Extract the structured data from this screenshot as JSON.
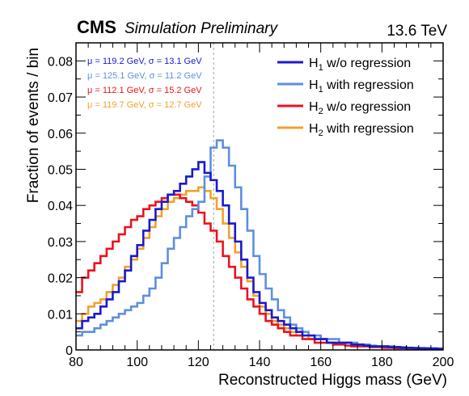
{
  "header": {
    "experiment": "CMS",
    "status": "Simulation Preliminary",
    "energy": "13.6 TeV"
  },
  "stats": [
    {
      "text": "μ = 119.2 GeV,   σ = 13.1 GeV",
      "color": "#1a1acc"
    },
    {
      "text": "μ = 125.1 GeV,   σ = 11.2 GeV",
      "color": "#5e8fe0"
    },
    {
      "text": "μ = 112.1 GeV,   σ = 15.2 GeV",
      "color": "#e8141e"
    },
    {
      "text": "μ = 119.7 GeV,   σ = 12.7 GeV",
      "color": "#f2a12d"
    }
  ],
  "chart_data": {
    "type": "line",
    "style": "step-histogram",
    "xlabel": "Reconstructed Higgs mass (GeV)",
    "ylabel": "Fraction of events / bin",
    "xlim": [
      80,
      200
    ],
    "ylim": [
      0,
      0.085
    ],
    "x_ticks": [
      80,
      100,
      120,
      140,
      160,
      180,
      200
    ],
    "x_tick_labels": [
      "80",
      "100",
      "120",
      "140",
      "160",
      "180",
      "200"
    ],
    "y_ticks": [
      0,
      0.01,
      0.02,
      0.03,
      0.04,
      0.05,
      0.06,
      0.07,
      0.08
    ],
    "y_tick_labels": [
      "0",
      "0.01",
      "0.02",
      "0.03",
      "0.04",
      "0.05",
      "0.06",
      "0.07",
      "0.08"
    ],
    "bin_width": 2,
    "reference_line_x": 125,
    "legend_position": "top-right",
    "series": [
      {
        "name": "H1 w/o regression",
        "label_main": "H",
        "label_sub": "1",
        "label_rest": " w/o regression",
        "color": "#1a1acc",
        "bin_low": [
          80,
          82,
          84,
          86,
          88,
          90,
          92,
          94,
          96,
          98,
          100,
          102,
          104,
          106,
          108,
          110,
          112,
          114,
          116,
          118,
          120,
          122,
          124,
          126,
          128,
          130,
          132,
          134,
          136,
          138,
          140,
          142,
          144,
          146,
          148,
          150,
          152,
          154,
          156,
          158,
          160,
          162,
          164,
          166,
          168,
          170,
          172,
          174,
          176,
          178,
          180,
          182,
          184,
          186,
          188,
          190,
          192,
          194,
          196,
          198
        ],
        "values": [
          0.006,
          0.008,
          0.009,
          0.01,
          0.012,
          0.014,
          0.016,
          0.019,
          0.022,
          0.026,
          0.029,
          0.033,
          0.036,
          0.039,
          0.041,
          0.043,
          0.044,
          0.046,
          0.048,
          0.05,
          0.052,
          0.049,
          0.047,
          0.044,
          0.04,
          0.035,
          0.03,
          0.025,
          0.02,
          0.016,
          0.013,
          0.011,
          0.009,
          0.008,
          0.007,
          0.006,
          0.005,
          0.004,
          0.004,
          0.003,
          0.003,
          0.002,
          0.002,
          0.002,
          0.002,
          0.0015,
          0.0015,
          0.0012,
          0.001,
          0.001,
          0.001,
          0.0008,
          0.0008,
          0.0006,
          0.0006,
          0.0005,
          0.0005,
          0.0004,
          0.0004,
          0.0003
        ]
      },
      {
        "name": "H1 with regression",
        "label_main": "H",
        "label_sub": "1",
        "label_rest": " with regression",
        "color": "#5e8fe0",
        "bin_low": [
          80,
          82,
          84,
          86,
          88,
          90,
          92,
          94,
          96,
          98,
          100,
          102,
          104,
          106,
          108,
          110,
          112,
          114,
          116,
          118,
          120,
          122,
          124,
          126,
          128,
          130,
          132,
          134,
          136,
          138,
          140,
          142,
          144,
          146,
          148,
          150,
          152,
          154,
          156,
          158,
          160,
          162,
          164,
          166,
          168,
          170,
          172,
          174,
          176,
          178,
          180,
          182,
          184,
          186,
          188,
          190,
          192,
          194,
          196,
          198
        ],
        "values": [
          0.004,
          0.005,
          0.005,
          0.006,
          0.007,
          0.008,
          0.009,
          0.01,
          0.011,
          0.012,
          0.013,
          0.015,
          0.017,
          0.02,
          0.024,
          0.028,
          0.031,
          0.034,
          0.037,
          0.039,
          0.041,
          0.048,
          0.056,
          0.058,
          0.056,
          0.051,
          0.045,
          0.039,
          0.033,
          0.026,
          0.021,
          0.017,
          0.014,
          0.011,
          0.009,
          0.007,
          0.006,
          0.005,
          0.004,
          0.004,
          0.003,
          0.003,
          0.003,
          0.002,
          0.002,
          0.002,
          0.0015,
          0.0015,
          0.0012,
          0.001,
          0.001,
          0.001,
          0.0008,
          0.0008,
          0.0006,
          0.0006,
          0.0005,
          0.0005,
          0.0004,
          0.0004
        ]
      },
      {
        "name": "H2 w/o regression",
        "label_main": "H",
        "label_sub": "2",
        "label_rest": " w/o regression",
        "color": "#e8141e",
        "bin_low": [
          80,
          82,
          84,
          86,
          88,
          90,
          92,
          94,
          96,
          98,
          100,
          102,
          104,
          106,
          108,
          110,
          112,
          114,
          116,
          118,
          120,
          122,
          124,
          126,
          128,
          130,
          132,
          134,
          136,
          138,
          140,
          142,
          144,
          146,
          148,
          150,
          152,
          154,
          156,
          158,
          160,
          162,
          164,
          166,
          168,
          170,
          172,
          174,
          176,
          178,
          180,
          182,
          184,
          186,
          188,
          190,
          192,
          194,
          196,
          198
        ],
        "values": [
          0.016,
          0.02,
          0.022,
          0.024,
          0.026,
          0.028,
          0.03,
          0.032,
          0.034,
          0.036,
          0.037,
          0.039,
          0.04,
          0.041,
          0.042,
          0.043,
          0.043,
          0.042,
          0.041,
          0.04,
          0.038,
          0.035,
          0.033,
          0.03,
          0.026,
          0.023,
          0.02,
          0.017,
          0.014,
          0.012,
          0.01,
          0.008,
          0.007,
          0.006,
          0.005,
          0.004,
          0.004,
          0.003,
          0.003,
          0.002,
          0.002,
          0.002,
          0.0015,
          0.0015,
          0.0012,
          0.001,
          0.001,
          0.001,
          0.0008,
          0.0008,
          0.0006,
          0.0006,
          0.0005,
          0.0005,
          0.0004,
          0.0004,
          0.0003,
          0.0003,
          0.0002,
          0.0002
        ]
      },
      {
        "name": "H2 with regression",
        "label_main": "H",
        "label_sub": "2",
        "label_rest": " with regression",
        "color": "#f2a12d",
        "bin_low": [
          80,
          82,
          84,
          86,
          88,
          90,
          92,
          94,
          96,
          98,
          100,
          102,
          104,
          106,
          108,
          110,
          112,
          114,
          116,
          118,
          120,
          122,
          124,
          126,
          128,
          130,
          132,
          134,
          136,
          138,
          140,
          142,
          144,
          146,
          148,
          150,
          152,
          154,
          156,
          158,
          160,
          162,
          164,
          166,
          168,
          170,
          172,
          174,
          176,
          178,
          180,
          182,
          184,
          186,
          188,
          190,
          192,
          194,
          196,
          198
        ],
        "values": [
          0.008,
          0.01,
          0.012,
          0.013,
          0.014,
          0.016,
          0.018,
          0.02,
          0.023,
          0.025,
          0.028,
          0.031,
          0.034,
          0.037,
          0.039,
          0.041,
          0.042,
          0.043,
          0.044,
          0.044,
          0.045,
          0.044,
          0.042,
          0.039,
          0.035,
          0.031,
          0.027,
          0.023,
          0.019,
          0.015,
          0.012,
          0.01,
          0.008,
          0.007,
          0.006,
          0.005,
          0.004,
          0.004,
          0.003,
          0.003,
          0.003,
          0.002,
          0.002,
          0.002,
          0.002,
          0.0015,
          0.0015,
          0.0012,
          0.001,
          0.001,
          0.001,
          0.0008,
          0.0008,
          0.0006,
          0.0006,
          0.0005,
          0.0005,
          0.0004,
          0.0004,
          0.0003
        ]
      }
    ]
  }
}
